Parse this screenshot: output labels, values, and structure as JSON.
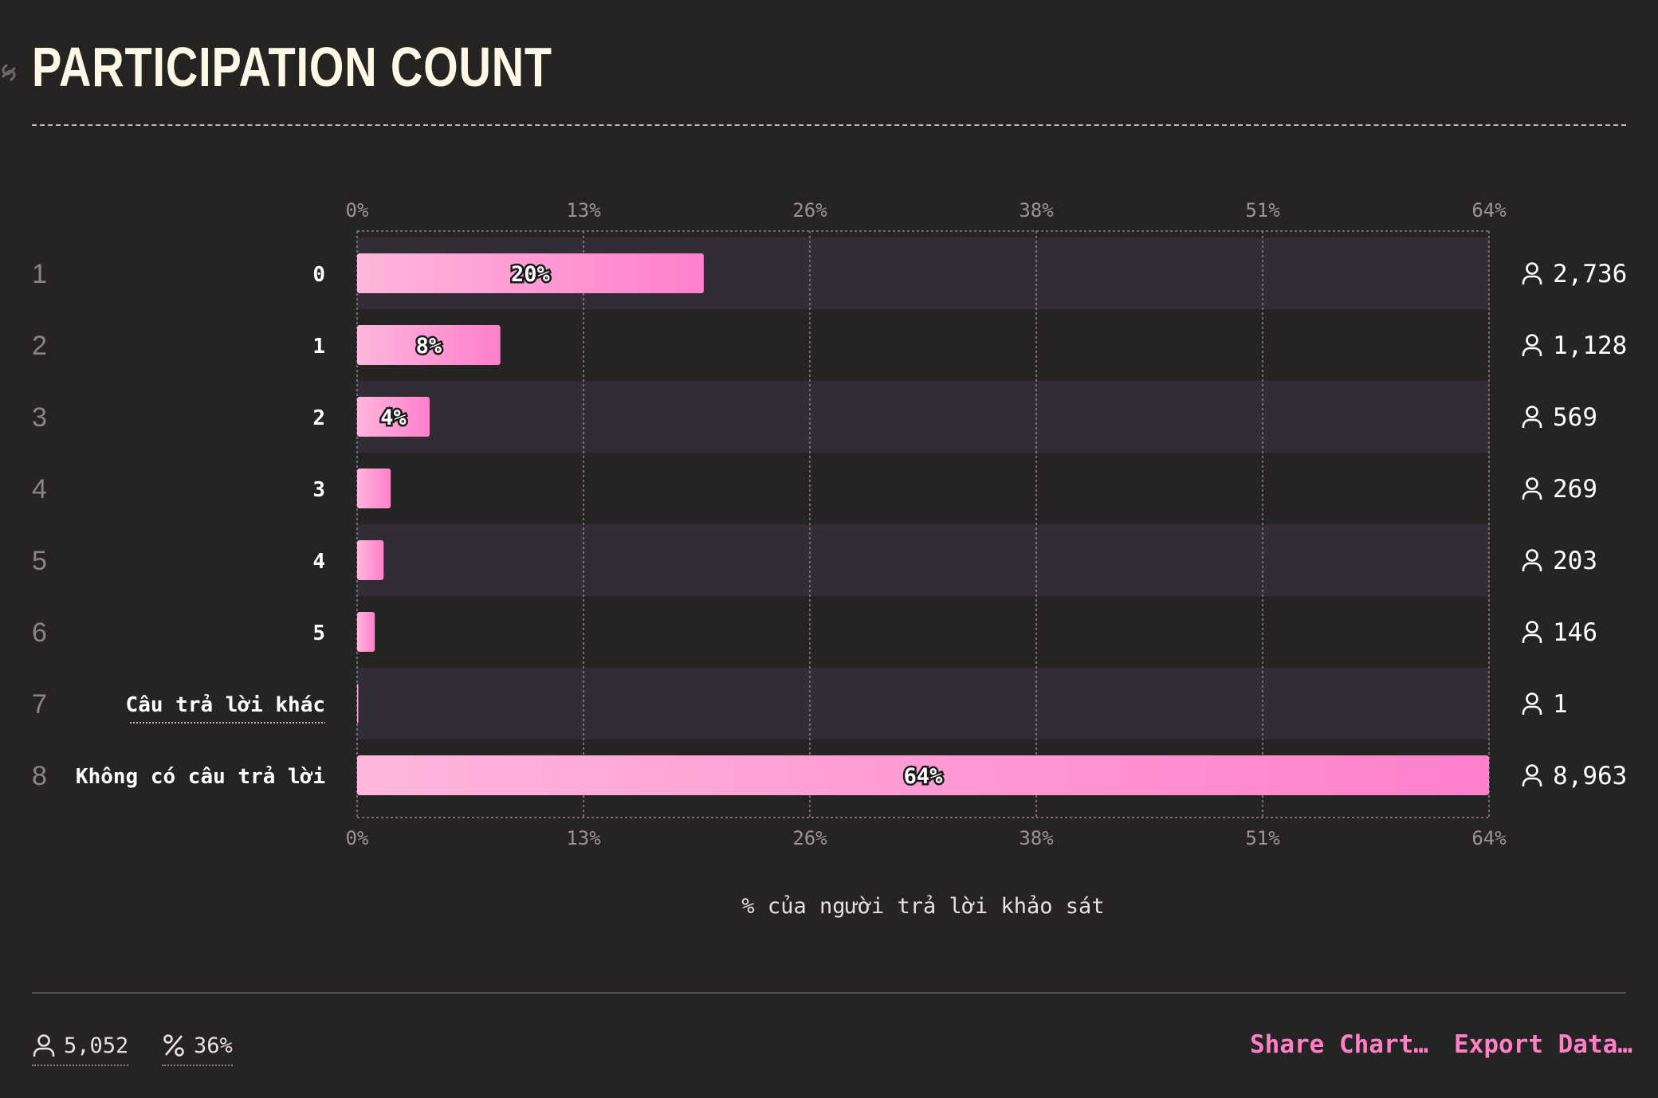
{
  "header": {
    "title": "PARTICIPATION COUNT"
  },
  "chart_data": {
    "type": "bar",
    "orientation": "horizontal",
    "categories": [
      "0",
      "1",
      "2",
      "3",
      "4",
      "5",
      "Câu trả lời khác",
      "Không có câu trả lời"
    ],
    "ranks": [
      "1",
      "2",
      "3",
      "4",
      "5",
      "6",
      "7",
      "8"
    ],
    "counts": [
      "2,736",
      "1,128",
      "569",
      "269",
      "203",
      "146",
      "1",
      "8,963"
    ],
    "values": [
      19.6,
      8.1,
      4.1,
      1.9,
      1.5,
      1.0,
      0.01,
      64.0
    ],
    "data_labels": [
      "20%",
      "8%",
      "4%",
      "",
      "",
      "",
      "",
      "64%"
    ],
    "x_ticks": [
      "0%",
      "13%",
      "26%",
      "38%",
      "51%",
      "64%"
    ],
    "x_tick_values": [
      0,
      12.8,
      25.6,
      38.4,
      51.2,
      64
    ],
    "xlim": [
      0,
      64
    ],
    "xlabel": "% của người trả lời khảo sát",
    "grid": true,
    "colors": {
      "bar_start": "#ffb6dc",
      "bar_end": "#ff7fcb",
      "band": "#322c37",
      "background": "#262323"
    }
  },
  "footer": {
    "respondents": "5,052",
    "percent": "36%",
    "share_label": "Share Chart…",
    "export_label": "Export Data…"
  },
  "icons": [
    "link-icon",
    "user-icon",
    "percent-icon"
  ]
}
